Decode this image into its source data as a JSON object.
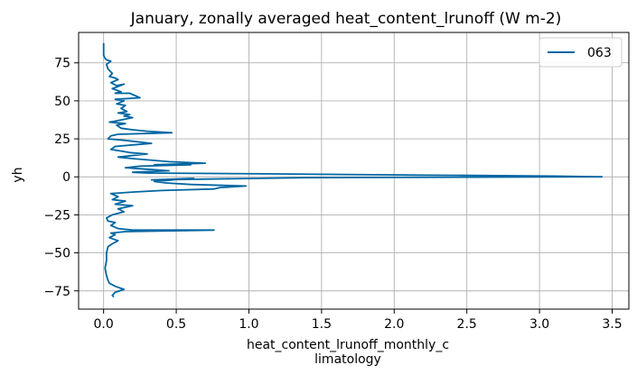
{
  "chart_data": {
    "type": "line",
    "title": "January, zonally averaged heat_content_lrunoff (W m-2)",
    "xlabel_lines": [
      "heat_content_lrunoff_monthly_c",
      "limatology"
    ],
    "ylabel": "yh",
    "xlim": [
      -0.172,
      3.615
    ],
    "ylim": [
      -87,
      95
    ],
    "xticks": [
      0.0,
      0.5,
      1.0,
      1.5,
      2.0,
      2.5,
      3.0,
      3.5
    ],
    "xtick_labels": [
      "0.0",
      "0.5",
      "1.0",
      "1.5",
      "2.0",
      "2.5",
      "3.0",
      "3.5"
    ],
    "yticks": [
      -75,
      -50,
      -25,
      0,
      25,
      50,
      75
    ],
    "ytick_labels": [
      "−75",
      "−50",
      "−25",
      "0",
      "25",
      "50",
      "75"
    ],
    "grid": true,
    "legend_position": "top-right",
    "series": [
      {
        "name": "063",
        "color": "#0066a2",
        "points": [
          [
            0.0,
            88
          ],
          [
            0.0,
            84
          ],
          [
            0.0,
            80
          ],
          [
            0.01,
            78
          ],
          [
            0.02,
            77
          ],
          [
            0.05,
            76
          ],
          [
            0.02,
            74
          ],
          [
            0.03,
            71
          ],
          [
            0.06,
            68
          ],
          [
            0.04,
            66
          ],
          [
            0.08,
            65
          ],
          [
            0.1,
            64
          ],
          [
            0.05,
            62
          ],
          [
            0.09,
            60
          ],
          [
            0.14,
            61
          ],
          [
            0.06,
            58
          ],
          [
            0.12,
            56
          ],
          [
            0.08,
            55
          ],
          [
            0.18,
            55
          ],
          [
            0.25,
            52
          ],
          [
            0.08,
            51
          ],
          [
            0.14,
            50
          ],
          [
            0.09,
            48
          ],
          [
            0.15,
            47
          ],
          [
            0.12,
            45
          ],
          [
            0.16,
            43
          ],
          [
            0.1,
            42
          ],
          [
            0.18,
            41
          ],
          [
            0.14,
            40
          ],
          [
            0.2,
            39
          ],
          [
            0.1,
            37
          ],
          [
            0.04,
            36
          ],
          [
            0.15,
            35
          ],
          [
            0.09,
            34
          ],
          [
            0.12,
            32
          ],
          [
            0.2,
            31
          ],
          [
            0.3,
            30
          ],
          [
            0.47,
            29
          ],
          [
            0.1,
            28
          ],
          [
            0.05,
            27
          ],
          [
            0.03,
            25
          ],
          [
            0.15,
            24
          ],
          [
            0.33,
            22
          ],
          [
            0.2,
            21
          ],
          [
            0.08,
            20
          ],
          [
            0.05,
            18
          ],
          [
            0.12,
            17
          ],
          [
            0.18,
            16
          ],
          [
            0.3,
            15
          ],
          [
            0.1,
            13
          ],
          [
            0.2,
            12
          ],
          [
            0.45,
            10
          ],
          [
            0.7,
            9
          ],
          [
            0.35,
            8
          ],
          [
            0.6,
            8
          ],
          [
            0.25,
            7
          ],
          [
            0.15,
            6
          ],
          [
            0.3,
            5
          ],
          [
            0.45,
            4
          ],
          [
            0.2,
            3
          ],
          [
            0.3,
            2.5
          ],
          [
            1.1,
            2
          ],
          [
            3.1,
            0.5
          ],
          [
            3.43,
            0
          ],
          [
            1.4,
            -0.5
          ],
          [
            0.33,
            -2
          ],
          [
            0.62,
            -1
          ],
          [
            0.35,
            -3
          ],
          [
            0.43,
            -4
          ],
          [
            0.6,
            -5
          ],
          [
            0.98,
            -6
          ],
          [
            0.8,
            -7
          ],
          [
            0.76,
            -8
          ],
          [
            0.4,
            -9
          ],
          [
            0.2,
            -10
          ],
          [
            0.05,
            -11
          ],
          [
            0.1,
            -13
          ],
          [
            0.06,
            -15
          ],
          [
            0.15,
            -16
          ],
          [
            0.08,
            -18
          ],
          [
            0.2,
            -19
          ],
          [
            0.1,
            -21
          ],
          [
            0.14,
            -23
          ],
          [
            0.06,
            -25
          ],
          [
            0.02,
            -27
          ],
          [
            0.03,
            -29
          ],
          [
            0.08,
            -30
          ],
          [
            0.05,
            -32
          ],
          [
            0.1,
            -34
          ],
          [
            0.2,
            -35
          ],
          [
            0.76,
            -35
          ],
          [
            0.15,
            -36
          ],
          [
            0.05,
            -37
          ],
          [
            0.08,
            -38
          ],
          [
            0.04,
            -40
          ],
          [
            0.1,
            -42
          ],
          [
            0.06,
            -44
          ],
          [
            0.03,
            -46
          ],
          [
            0.02,
            -50
          ],
          [
            0.02,
            -55
          ],
          [
            0.01,
            -60
          ],
          [
            0.02,
            -65
          ],
          [
            0.03,
            -68
          ],
          [
            0.04,
            -70
          ],
          [
            0.08,
            -72
          ],
          [
            0.14,
            -74
          ],
          [
            0.08,
            -76
          ],
          [
            0.06,
            -78
          ],
          [
            0.07,
            -79
          ]
        ]
      }
    ]
  }
}
